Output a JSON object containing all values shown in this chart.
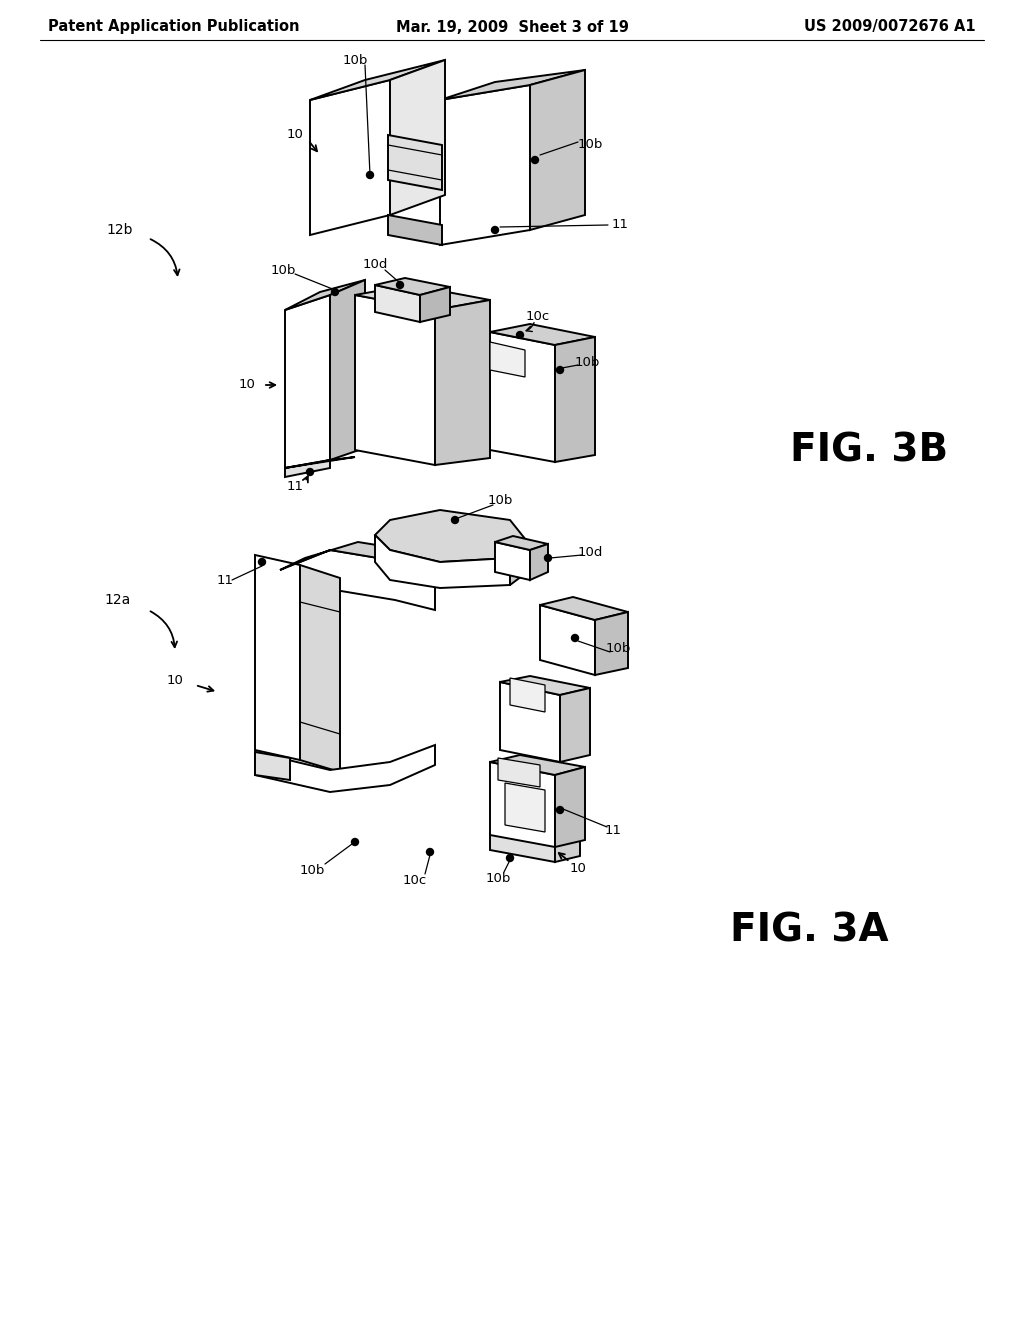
{
  "background_color": "#ffffff",
  "header_left": "Patent Application Publication",
  "header_center": "Mar. 19, 2009  Sheet 3 of 19",
  "header_right": "US 2009/0072676 A1",
  "header_fontsize": 10.5,
  "fig3a_label": "FIG. 3A",
  "fig3b_label": "FIG. 3B",
  "label_fontsize": 28,
  "fig3a_tag": "12a",
  "fig3b_tag": "12b",
  "line_color": "#000000",
  "line_width": 1.4,
  "figure_width": 10.24,
  "figure_height": 13.2
}
